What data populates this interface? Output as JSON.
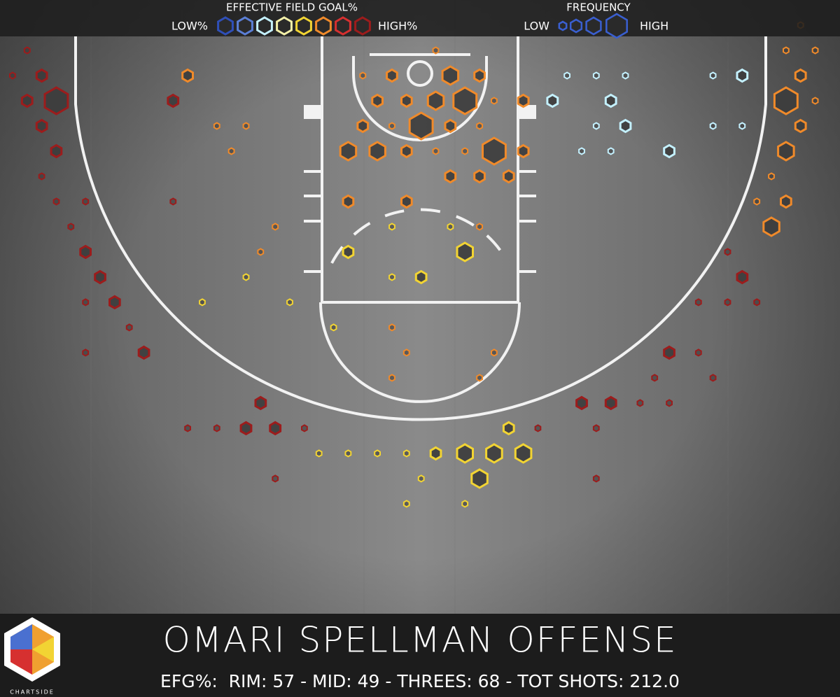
{
  "chart_data": {
    "type": "hexbin",
    "title": "OMARI SPELLMAN OFFENSE",
    "subtitle": "EFG%:  RIM: 57 - MID: 49 - THREES: 68 - TOT SHOTS: 212.0",
    "color_legend": {
      "title": "EFFECTIVE FIELD GOAL%",
      "low": "LOW%",
      "high": "HIGH%",
      "colors": [
        "#2f4fb8",
        "#5b7fd6",
        "#c4f1ff",
        "#f3f0a8",
        "#f2d433",
        "#f08a2a",
        "#d63030",
        "#9c1c1c"
      ]
    },
    "size_legend": {
      "title": "FREQUENCY",
      "low": "LOW",
      "high": "HIGH",
      "levels": [
        1,
        2,
        3,
        4
      ]
    },
    "xlim": [
      -0.86,
      56.7
    ],
    "ylim": [
      0,
      27.67
    ],
    "x": [
      1,
      0,
      2,
      1,
      3,
      2,
      3,
      2,
      3,
      5,
      4,
      5,
      6,
      5,
      7,
      8,
      5,
      9,
      11,
      11,
      12,
      14,
      16,
      15,
      18,
      17,
      16,
      13,
      19,
      22,
      26,
      27,
      33,
      26,
      32,
      17,
      18,
      16,
      12,
      14,
      20,
      21,
      23,
      25,
      27,
      29,
      31,
      33,
      35,
      34,
      32,
      28,
      18,
      27,
      31,
      36,
      40,
      40,
      39,
      41,
      43,
      45,
      45,
      47,
      44,
      48,
      47,
      49,
      51,
      50,
      49,
      52,
      53,
      51,
      52,
      53,
      54,
      53,
      55,
      54,
      53,
      55,
      54,
      38,
      40,
      42,
      48,
      50,
      37,
      41,
      40,
      42,
      48,
      50,
      39,
      41,
      45,
      29,
      24,
      26,
      30,
      32,
      25,
      27,
      29,
      31,
      33,
      35,
      24,
      26,
      28,
      30,
      32,
      23,
      25,
      27,
      29,
      31,
      33,
      35,
      30,
      32,
      34,
      23,
      27,
      26,
      30,
      32,
      23,
      31,
      26,
      28
    ],
    "y": [
      2,
      3,
      3,
      4,
      4,
      5,
      6,
      7,
      8,
      8,
      9,
      10,
      11,
      12,
      12,
      13,
      14,
      14,
      4,
      8,
      3,
      5,
      5,
      6,
      9,
      10,
      11,
      12,
      12,
      13,
      13,
      14,
      14,
      15,
      15,
      16,
      17,
      17,
      17,
      17,
      17,
      18,
      18,
      18,
      18,
      18,
      18,
      18,
      18,
      17,
      19,
      19,
      19,
      20,
      20,
      17,
      17,
      19,
      16,
      16,
      16,
      16,
      14,
      14,
      15,
      15,
      12,
      12,
      12,
      11,
      10,
      9,
      8,
      8,
      7,
      6,
      5,
      4,
      4,
      3,
      2,
      2,
      1,
      3,
      3,
      3,
      3,
      3,
      4,
      4,
      5,
      5,
      5,
      5,
      6,
      6,
      6,
      2,
      3,
      3,
      3,
      3,
      4,
      4,
      4,
      4,
      4,
      4,
      5,
      5,
      5,
      5,
      5,
      6,
      6,
      6,
      6,
      6,
      6,
      6,
      7,
      7,
      7,
      8,
      8,
      9,
      9,
      9,
      10,
      10,
      11,
      11
    ],
    "size": [
      1,
      1,
      2,
      2,
      4,
      2,
      2,
      1,
      1,
      1,
      1,
      2,
      2,
      1,
      2,
      1,
      1,
      2,
      2,
      1,
      2,
      1,
      1,
      1,
      1,
      1,
      1,
      1,
      1,
      1,
      1,
      1,
      1,
      1,
      1,
      2,
      2,
      2,
      1,
      1,
      1,
      1,
      1,
      1,
      1,
      2,
      3,
      3,
      3,
      2,
      3,
      1,
      1,
      1,
      1,
      1,
      1,
      1,
      2,
      2,
      1,
      1,
      2,
      1,
      1,
      1,
      1,
      1,
      1,
      2,
      1,
      3,
      2,
      1,
      1,
      3,
      2,
      4,
      1,
      2,
      1,
      1,
      1,
      1,
      1,
      1,
      1,
      2,
      2,
      2,
      1,
      2,
      1,
      1,
      1,
      1,
      2,
      1,
      1,
      2,
      3,
      2,
      2,
      2,
      3,
      4,
      1,
      2,
      2,
      1,
      4,
      2,
      1,
      3,
      3,
      2,
      1,
      1,
      4,
      2,
      2,
      2,
      2,
      2,
      2,
      1,
      1,
      1,
      2,
      3,
      1,
      2
    ],
    "efg_level": [
      7,
      7,
      7,
      7,
      7,
      7,
      7,
      7,
      7,
      7,
      7,
      7,
      7,
      7,
      7,
      7,
      7,
      7,
      7,
      7,
      5,
      5,
      5,
      5,
      5,
      5,
      4,
      4,
      4,
      4,
      5,
      5,
      5,
      5,
      5,
      7,
      7,
      7,
      7,
      7,
      7,
      4,
      4,
      4,
      4,
      4,
      4,
      4,
      4,
      4,
      4,
      4,
      7,
      4,
      4,
      7,
      7,
      7,
      7,
      7,
      7,
      7,
      7,
      7,
      7,
      7,
      7,
      7,
      7,
      7,
      7,
      5,
      5,
      5,
      5,
      5,
      5,
      5,
      5,
      5,
      5,
      5,
      5,
      2,
      2,
      2,
      2,
      2,
      2,
      2,
      2,
      2,
      2,
      2,
      2,
      2,
      2,
      5,
      5,
      5,
      5,
      5,
      5,
      5,
      5,
      5,
      5,
      5,
      5,
      5,
      5,
      5,
      5,
      5,
      5,
      5,
      5,
      5,
      5,
      5,
      5,
      5,
      5,
      5,
      5,
      4,
      4,
      5,
      4,
      4,
      4,
      4
    ]
  },
  "logo": "CHARTSIDE"
}
